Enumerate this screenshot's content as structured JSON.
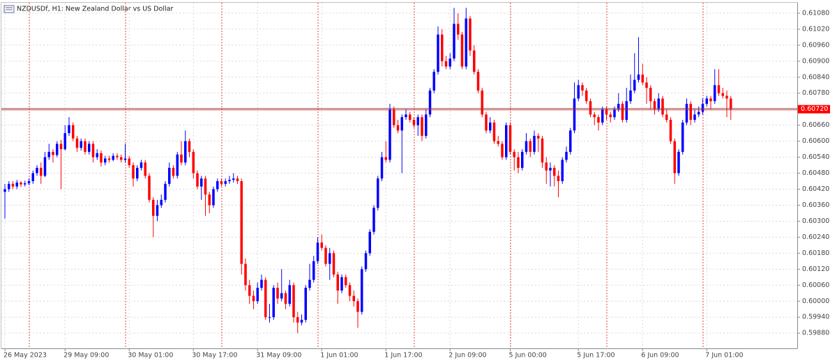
{
  "chart_data": {
    "type": "candlestick",
    "title": "NZDUSDf, H1:  New Zealand Dollar vs US Dollar",
    "up_color": "#0000ff",
    "down_color": "#ff0000",
    "grid": true,
    "ylim": [
      0.59823,
      0.61119
    ],
    "yticks": [
      {
        "value": 0.5988,
        "label": "0.59880"
      },
      {
        "value": 0.5994,
        "label": "0.59940"
      },
      {
        "value": 0.6,
        "label": "0.60000"
      },
      {
        "value": 0.6006,
        "label": "0.60060"
      },
      {
        "value": 0.6012,
        "label": "0.60120"
      },
      {
        "value": 0.6018,
        "label": "0.60180"
      },
      {
        "value": 0.6024,
        "label": "0.60240"
      },
      {
        "value": 0.603,
        "label": "0.60300"
      },
      {
        "value": 0.6036,
        "label": "0.60360"
      },
      {
        "value": 0.6042,
        "label": "0.60420"
      },
      {
        "value": 0.6048,
        "label": "0.60480"
      },
      {
        "value": 0.6054,
        "label": "0.60540"
      },
      {
        "value": 0.606,
        "label": "0.60600"
      },
      {
        "value": 0.6066,
        "label": "0.60660"
      },
      {
        "value": 0.6078,
        "label": "0.60780"
      },
      {
        "value": 0.6084,
        "label": "0.60840"
      },
      {
        "value": 0.609,
        "label": "0.60900"
      },
      {
        "value": 0.6096,
        "label": "0.60960"
      },
      {
        "value": 0.6102,
        "label": "0.61020"
      },
      {
        "value": 0.6108,
        "label": "0.61080"
      }
    ],
    "current_price": {
      "value": 0.6072,
      "label": "0.60720",
      "color": "#ff0000"
    },
    "day_separators": [
      6,
      30,
      54,
      78,
      102,
      126,
      150,
      174
    ],
    "categories": [
      "26 May 2023",
      null,
      null,
      null,
      null,
      null,
      null,
      null,
      null,
      null,
      null,
      null,
      null,
      null,
      null,
      "29 May 09:00",
      null,
      null,
      null,
      null,
      null,
      null,
      null,
      null,
      null,
      null,
      null,
      null,
      null,
      null,
      null,
      "30 May 01:00",
      null,
      null,
      null,
      null,
      null,
      null,
      null,
      null,
      null,
      null,
      null,
      null,
      null,
      null,
      null,
      "30 May 17:00",
      null,
      null,
      null,
      null,
      null,
      null,
      null,
      null,
      null,
      null,
      null,
      null,
      null,
      null,
      null,
      "31 May 09:00",
      null,
      null,
      null,
      null,
      null,
      null,
      null,
      null,
      null,
      null,
      null,
      null,
      null,
      null,
      null,
      "1 Jun 01:00",
      null,
      null,
      null,
      null,
      null,
      null,
      null,
      null,
      null,
      null,
      null,
      null,
      null,
      null,
      null,
      "1 Jun 17:00",
      null,
      null,
      null,
      null,
      null,
      null,
      null,
      null,
      null,
      null,
      null,
      null,
      null,
      null,
      null,
      "2 Jun 09:00",
      null,
      null,
      null,
      null,
      null,
      null,
      null,
      null,
      null,
      null,
      null,
      null,
      null,
      null,
      "5 Jun 00:00",
      null,
      null,
      null,
      null,
      null,
      null,
      null,
      null,
      null,
      null,
      null,
      null,
      null,
      null,
      null,
      null,
      "5 Jun 17:00",
      null,
      null,
      null,
      null,
      null,
      null,
      null,
      null,
      null,
      null,
      null,
      null,
      null,
      null,
      null,
      "6 Jun 09:00",
      null,
      null,
      null,
      null,
      null,
      null,
      null,
      null,
      null,
      null,
      null,
      null,
      null,
      null,
      null,
      "7 Jun 01:00",
      null,
      null,
      null,
      null,
      null,
      null
    ],
    "ohlc": [
      [
        0.6041,
        0.6044,
        0.6031,
        0.6042
      ],
      [
        0.6042,
        0.6045,
        0.6041,
        0.6044
      ],
      [
        0.6044,
        0.6045,
        0.6042,
        0.6043
      ],
      [
        0.6043,
        0.60455,
        0.6042,
        0.60445
      ],
      [
        0.60445,
        0.6045,
        0.60428,
        0.60438
      ],
      [
        0.60438,
        0.60452,
        0.6043,
        0.60442
      ],
      [
        0.60442,
        0.6046,
        0.60435,
        0.6045
      ],
      [
        0.6045,
        0.6049,
        0.6044,
        0.6048
      ],
      [
        0.6048,
        0.6051,
        0.6047,
        0.605
      ],
      [
        0.605,
        0.6052,
        0.6044,
        0.6047
      ],
      [
        0.6047,
        0.6056,
        0.60465,
        0.6054
      ],
      [
        0.6054,
        0.6059,
        0.6053,
        0.6056
      ],
      [
        0.6056,
        0.6057,
        0.6052,
        0.60548
      ],
      [
        0.60548,
        0.606,
        0.6054,
        0.6059
      ],
      [
        0.6059,
        0.60605,
        0.6042,
        0.6057
      ],
      [
        0.6057,
        0.6066,
        0.60565,
        0.6063
      ],
      [
        0.6063,
        0.6069,
        0.6062,
        0.6066
      ],
      [
        0.6066,
        0.6067,
        0.606,
        0.6061
      ],
      [
        0.6061,
        0.6062,
        0.6056,
        0.60575
      ],
      [
        0.60575,
        0.6061,
        0.60565,
        0.606
      ],
      [
        0.606,
        0.6061,
        0.6055,
        0.6056
      ],
      [
        0.6056,
        0.606,
        0.6055,
        0.6059
      ],
      [
        0.6059,
        0.606,
        0.6052,
        0.6054
      ],
      [
        0.6054,
        0.6057,
        0.6053,
        0.60555
      ],
      [
        0.60555,
        0.60565,
        0.60505,
        0.6052
      ],
      [
        0.6052,
        0.60545,
        0.6051,
        0.60535
      ],
      [
        0.60535,
        0.60545,
        0.6052,
        0.6053
      ],
      [
        0.6053,
        0.60555,
        0.60525,
        0.60545
      ],
      [
        0.60545,
        0.60555,
        0.6053,
        0.6054
      ],
      [
        0.6054,
        0.6055,
        0.6052,
        0.6053
      ],
      [
        0.6053,
        0.6059,
        0.6052,
        0.60535
      ],
      [
        0.60535,
        0.60545,
        0.605,
        0.6051
      ],
      [
        0.6051,
        0.6052,
        0.6043,
        0.6046
      ],
      [
        0.6046,
        0.6051,
        0.6045,
        0.605
      ],
      [
        0.605,
        0.6053,
        0.6049,
        0.6052
      ],
      [
        0.6052,
        0.6053,
        0.6046,
        0.6047
      ],
      [
        0.6047,
        0.6048,
        0.6037,
        0.6038
      ],
      [
        0.6038,
        0.6039,
        0.6024,
        0.6032
      ],
      [
        0.6032,
        0.6038,
        0.603,
        0.6036
      ],
      [
        0.6036,
        0.604,
        0.6035,
        0.6038
      ],
      [
        0.6038,
        0.6045,
        0.6037,
        0.6044
      ],
      [
        0.6044,
        0.6052,
        0.6043,
        0.605
      ],
      [
        0.605,
        0.6051,
        0.6046,
        0.6047
      ],
      [
        0.6047,
        0.6056,
        0.6046,
        0.6055
      ],
      [
        0.6055,
        0.606,
        0.6051,
        0.6052
      ],
      [
        0.6052,
        0.6064,
        0.6051,
        0.606
      ],
      [
        0.606,
        0.6061,
        0.6054,
        0.6056
      ],
      [
        0.6056,
        0.6057,
        0.6046,
        0.6048
      ],
      [
        0.6048,
        0.6049,
        0.6042,
        0.6043
      ],
      [
        0.6043,
        0.6047,
        0.6038,
        0.6046
      ],
      [
        0.6046,
        0.6047,
        0.6032,
        0.604
      ],
      [
        0.604,
        0.6041,
        0.6033,
        0.6036
      ],
      [
        0.6036,
        0.6043,
        0.6035,
        0.6042
      ],
      [
        0.6042,
        0.6046,
        0.6041,
        0.6045
      ],
      [
        0.6045,
        0.6046,
        0.6043,
        0.6044
      ],
      [
        0.6044,
        0.6046,
        0.6043,
        0.6045
      ],
      [
        0.6045,
        0.6047,
        0.6044,
        0.60455
      ],
      [
        0.60455,
        0.6048,
        0.60445,
        0.6046
      ],
      [
        0.6046,
        0.6047,
        0.6044,
        0.6045
      ],
      [
        0.6045,
        0.6046,
        0.601,
        0.6014
      ],
      [
        0.6014,
        0.6016,
        0.6004,
        0.6006
      ],
      [
        0.6006,
        0.6008,
        0.5999,
        0.6002
      ],
      [
        0.6002,
        0.6004,
        0.5997,
        0.6
      ],
      [
        0.6,
        0.6007,
        0.5999,
        0.6005
      ],
      [
        0.6005,
        0.601,
        0.6004,
        0.6008
      ],
      [
        0.6008,
        0.6009,
        0.5993,
        0.5994
      ],
      [
        0.5994,
        0.5999,
        0.5992,
        0.5994
      ],
      [
        0.5994,
        0.6006,
        0.5993,
        0.6005
      ],
      [
        0.6005,
        0.6007,
        0.5999,
        0.6001
      ],
      [
        0.6001,
        0.6012,
        0.6,
        0.6003
      ],
      [
        0.6003,
        0.6004,
        0.5997,
        0.5999
      ],
      [
        0.5999,
        0.6008,
        0.5998,
        0.6006
      ],
      [
        0.6006,
        0.6007,
        0.5992,
        0.5994
      ],
      [
        0.5994,
        0.5996,
        0.5988,
        0.5992
      ],
      [
        0.5992,
        0.5995,
        0.5991,
        0.5993
      ],
      [
        0.5993,
        0.6006,
        0.5992,
        0.6005
      ],
      [
        0.6005,
        0.6014,
        0.6004,
        0.6008
      ],
      [
        0.6008,
        0.6017,
        0.6007,
        0.6015
      ],
      [
        0.6015,
        0.6024,
        0.6014,
        0.6022
      ],
      [
        0.6022,
        0.6025,
        0.6019,
        0.602
      ],
      [
        0.602,
        0.6021,
        0.6013,
        0.6014
      ],
      [
        0.6014,
        0.602,
        0.6008,
        0.6018
      ],
      [
        0.6018,
        0.6019,
        0.6009,
        0.601
      ],
      [
        0.601,
        0.6011,
        0.5999,
        0.6004
      ],
      [
        0.6004,
        0.601,
        0.6003,
        0.6009
      ],
      [
        0.6009,
        0.601,
        0.6005,
        0.6006
      ],
      [
        0.6006,
        0.6007,
        0.6,
        0.6002
      ],
      [
        0.6002,
        0.6004,
        0.5998,
        0.6
      ],
      [
        0.6,
        0.6001,
        0.599,
        0.5996
      ],
      [
        0.5996,
        0.6013,
        0.5995,
        0.6012
      ],
      [
        0.6012,
        0.6019,
        0.6011,
        0.6018
      ],
      [
        0.6018,
        0.6027,
        0.6017,
        0.6026
      ],
      [
        0.6026,
        0.6036,
        0.6025,
        0.6035
      ],
      [
        0.6035,
        0.6047,
        0.6034,
        0.6046
      ],
      [
        0.6046,
        0.6056,
        0.6045,
        0.6054
      ],
      [
        0.6054,
        0.606,
        0.6052,
        0.6053
      ],
      [
        0.6053,
        0.6074,
        0.6052,
        0.6072
      ],
      [
        0.6072,
        0.6073,
        0.6065,
        0.6066
      ],
      [
        0.6066,
        0.6068,
        0.6063,
        0.6064
      ],
      [
        0.6064,
        0.607,
        0.6048,
        0.6069
      ],
      [
        0.6069,
        0.6072,
        0.6068,
        0.607
      ],
      [
        0.607,
        0.6071,
        0.6067,
        0.6068
      ],
      [
        0.6068,
        0.6069,
        0.6065,
        0.6066
      ],
      [
        0.6066,
        0.607,
        0.6062,
        0.6069
      ],
      [
        0.6069,
        0.607,
        0.606,
        0.6062
      ],
      [
        0.6062,
        0.6072,
        0.6061,
        0.607
      ],
      [
        0.607,
        0.608,
        0.6069,
        0.6079
      ],
      [
        0.6079,
        0.6087,
        0.6078,
        0.6086
      ],
      [
        0.6086,
        0.6103,
        0.6085,
        0.61
      ],
      [
        0.61,
        0.6102,
        0.6088,
        0.609
      ],
      [
        0.609,
        0.6092,
        0.6087,
        0.6088
      ],
      [
        0.6088,
        0.6093,
        0.6087,
        0.6091
      ],
      [
        0.6091,
        0.611,
        0.609,
        0.6104
      ],
      [
        0.6104,
        0.6108,
        0.6098,
        0.61
      ],
      [
        0.61,
        0.6101,
        0.6087,
        0.6088
      ],
      [
        0.6088,
        0.611,
        0.6087,
        0.6106
      ],
      [
        0.6106,
        0.6107,
        0.6092,
        0.6094
      ],
      [
        0.6094,
        0.6096,
        0.6085,
        0.6086
      ],
      [
        0.6086,
        0.6087,
        0.6078,
        0.6079
      ],
      [
        0.6079,
        0.608,
        0.6069,
        0.607
      ],
      [
        0.607,
        0.6071,
        0.6063,
        0.6064
      ],
      [
        0.6064,
        0.6069,
        0.6063,
        0.6067
      ],
      [
        0.6067,
        0.6068,
        0.6059,
        0.606
      ],
      [
        0.606,
        0.6062,
        0.6058,
        0.6059
      ],
      [
        0.6059,
        0.606,
        0.6053,
        0.6054
      ],
      [
        0.6054,
        0.6067,
        0.6053,
        0.6066
      ],
      [
        0.6066,
        0.6067,
        0.6055,
        0.6056
      ],
      [
        0.6056,
        0.6057,
        0.6049,
        0.6054
      ],
      [
        0.6054,
        0.6056,
        0.6048,
        0.605
      ],
      [
        0.605,
        0.6057,
        0.6049,
        0.6056
      ],
      [
        0.6056,
        0.6063,
        0.6055,
        0.606
      ],
      [
        0.606,
        0.6061,
        0.6054,
        0.6056
      ],
      [
        0.6056,
        0.6064,
        0.6055,
        0.6062
      ],
      [
        0.6062,
        0.6063,
        0.6056,
        0.6061
      ],
      [
        0.6061,
        0.6062,
        0.605,
        0.6052
      ],
      [
        0.6052,
        0.6054,
        0.6044,
        0.6049
      ],
      [
        0.6049,
        0.6052,
        0.6043,
        0.605
      ],
      [
        0.605,
        0.6051,
        0.6043,
        0.6047
      ],
      [
        0.6047,
        0.6049,
        0.6039,
        0.6045
      ],
      [
        0.6045,
        0.6054,
        0.6044,
        0.6053
      ],
      [
        0.6053,
        0.6058,
        0.6052,
        0.6056
      ],
      [
        0.6056,
        0.6065,
        0.6055,
        0.6064
      ],
      [
        0.6064,
        0.6082,
        0.6063,
        0.6076
      ],
      [
        0.6076,
        0.6083,
        0.6075,
        0.6081
      ],
      [
        0.6081,
        0.6082,
        0.6077,
        0.6079
      ],
      [
        0.6079,
        0.608,
        0.6074,
        0.6075
      ],
      [
        0.6075,
        0.6076,
        0.6069,
        0.607
      ],
      [
        0.607,
        0.6071,
        0.6066,
        0.6069
      ],
      [
        0.6069,
        0.607,
        0.6064,
        0.6067
      ],
      [
        0.6067,
        0.6073,
        0.6066,
        0.6072
      ],
      [
        0.6072,
        0.6073,
        0.6068,
        0.607
      ],
      [
        0.607,
        0.6071,
        0.6067,
        0.6069
      ],
      [
        0.6069,
        0.6073,
        0.6068,
        0.6072
      ],
      [
        0.6072,
        0.6078,
        0.6071,
        0.6074
      ],
      [
        0.6074,
        0.6075,
        0.6067,
        0.6068
      ],
      [
        0.6068,
        0.608,
        0.6067,
        0.6075
      ],
      [
        0.6075,
        0.6085,
        0.6074,
        0.6079
      ],
      [
        0.6079,
        0.6093,
        0.6078,
        0.6083
      ],
      [
        0.6083,
        0.6099,
        0.6082,
        0.6085
      ],
      [
        0.6085,
        0.6089,
        0.6081,
        0.6082
      ],
      [
        0.6082,
        0.6084,
        0.6074,
        0.608
      ],
      [
        0.608,
        0.6081,
        0.6072,
        0.6075
      ],
      [
        0.6075,
        0.6076,
        0.607,
        0.6072
      ],
      [
        0.6072,
        0.6078,
        0.6071,
        0.6076
      ],
      [
        0.6076,
        0.6077,
        0.6069,
        0.607
      ],
      [
        0.607,
        0.6072,
        0.6067,
        0.6068
      ],
      [
        0.6068,
        0.6069,
        0.6059,
        0.606
      ],
      [
        0.606,
        0.6061,
        0.6044,
        0.6048
      ],
      [
        0.6048,
        0.6057,
        0.6047,
        0.6056
      ],
      [
        0.6056,
        0.6068,
        0.6055,
        0.6067
      ],
      [
        0.6067,
        0.6076,
        0.6066,
        0.6074
      ],
      [
        0.6074,
        0.6075,
        0.6066,
        0.6068
      ],
      [
        0.6068,
        0.6072,
        0.6067,
        0.607
      ],
      [
        0.607,
        0.6073,
        0.6069,
        0.6071
      ],
      [
        0.6071,
        0.6076,
        0.607,
        0.6074
      ],
      [
        0.6074,
        0.6077,
        0.6073,
        0.6076
      ],
      [
        0.6076,
        0.6077,
        0.6072,
        0.6075
      ],
      [
        0.6075,
        0.6087,
        0.6074,
        0.6081
      ],
      [
        0.6081,
        0.6087,
        0.6077,
        0.6078
      ],
      [
        0.6078,
        0.608,
        0.6076,
        0.6077
      ],
      [
        0.6077,
        0.6079,
        0.6069,
        0.6076
      ],
      [
        0.6076,
        0.6077,
        0.6068,
        0.6072
      ]
    ]
  }
}
